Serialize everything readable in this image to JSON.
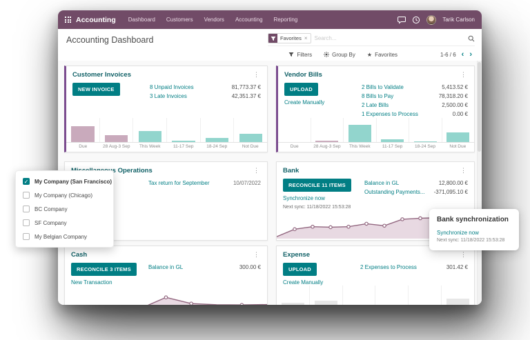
{
  "topbar": {
    "brand": "Accounting",
    "nav": [
      "Dashboard",
      "Customers",
      "Vendors",
      "Accounting",
      "Reporting"
    ],
    "user_name": "Tarik Carlson"
  },
  "control_panel": {
    "title": "Accounting Dashboard",
    "facet_label": "Favorites",
    "search_placeholder": "Search...",
    "filters_label": "Filters",
    "group_by_label": "Group By",
    "favorites_label": "Favorites",
    "pager": "1-6 / 6"
  },
  "icons": {
    "kebab": "⋮",
    "star": "★",
    "check": "✓",
    "close": "×",
    "chevron_left": "‹",
    "chevron_right": "›"
  },
  "cards": {
    "customer_invoices": {
      "title": "Customer Invoices",
      "button": "NEW INVOICE",
      "stats": [
        {
          "label": "8 Unpaid Invoices",
          "amount": "81,773.37 €"
        },
        {
          "label": "3 Late Invoices",
          "amount": "42,351.37 €"
        }
      ]
    },
    "vendor_bills": {
      "title": "Vendor Bills",
      "button": "UPLOAD",
      "link": "Create Manually",
      "stats": [
        {
          "label": "2 Bills to Validate",
          "amount": "5,413.52 €"
        },
        {
          "label": "8 Bills to Pay",
          "amount": "78,318.20 €"
        },
        {
          "label": "2 Late Bills",
          "amount": "2,500.00 €"
        },
        {
          "label": "1 Expenses to Process",
          "amount": "0.00 €"
        }
      ]
    },
    "misc_operations": {
      "title": "Miscellaneous Operations",
      "stats": [
        {
          "label": "Tax return for September",
          "amount": "10/07/2022"
        }
      ]
    },
    "bank": {
      "title": "Bank",
      "button": "RECONCILE 11 ITEMS",
      "link": "Synchronize now",
      "sub": "Next sync: 11/18/2022 15:53:28",
      "stats": [
        {
          "label": "Balance in GL",
          "amount": "12,800.00 €"
        },
        {
          "label": "Outstanding Payments...",
          "amount": "-371,095.10 €"
        }
      ]
    },
    "cash": {
      "title": "Cash",
      "button": "RECONCILE 3 ITEMS",
      "link": "New Transaction",
      "stats": [
        {
          "label": "Balance in GL",
          "amount": "300.00 €"
        }
      ]
    },
    "expense": {
      "title": "Expense",
      "button": "UPLOAD",
      "link": "Create Manually",
      "stats": [
        {
          "label": "2 Expenses to Process",
          "amount": "301.42 €"
        }
      ]
    }
  },
  "company_dropdown": {
    "items": [
      {
        "label": "My Company (San Francisco)",
        "checked": true
      },
      {
        "label": "My Company (Chicago)",
        "checked": false
      },
      {
        "label": "BC Company",
        "checked": false
      },
      {
        "label": "SF Company",
        "checked": false
      },
      {
        "label": "My Belgian Company",
        "checked": false
      }
    ]
  },
  "tooltip": {
    "title": "Bank synchronization",
    "link": "Synchronize now",
    "sub": "Next sync: 11/18/2022 15:53:28"
  },
  "colors": {
    "topbar": "#714B67",
    "teal": "#017E84",
    "cardtitle": "#0E5F65",
    "stripe": "#7B4C8F",
    "bar_mauve": "#C9AABC",
    "bar_teal": "#92D5CD",
    "bar_gray": "#E7E7E7",
    "line_stroke": "#92667F",
    "line_fill": "#E2CFDB"
  },
  "chart_data": [
    {
      "id": "customer_invoices",
      "type": "bar",
      "title": "Customer Invoices due amounts by period",
      "categories": [
        "Due",
        "28 Aug-3 Sep",
        "This Week",
        "11-17 Sep",
        "18-24 Sep",
        "Not Due"
      ],
      "values": [
        24,
        10,
        16,
        2,
        6,
        12
      ],
      "max": 36,
      "colors": [
        "#C9AABC",
        "#C9AABC",
        "#92D5CD",
        "#92D5CD",
        "#92D5CD",
        "#92D5CD"
      ]
    },
    {
      "id": "vendor_bills",
      "type": "bar",
      "title": "Vendor Bills due amounts by period",
      "categories": [
        "Due",
        "28 Aug-3 Sep",
        "This Week",
        "11-17 Sep",
        "18-24 Sep",
        "Not Due"
      ],
      "values": [
        0,
        2,
        26,
        4,
        1,
        14
      ],
      "max": 36,
      "colors": [
        "#C9AABC",
        "#C9AABC",
        "#92D5CD",
        "#92D5CD",
        "#92D5CD",
        "#92D5CD"
      ]
    },
    {
      "id": "bank",
      "type": "area",
      "title": "Bank balance trend",
      "values": [
        8,
        38,
        48,
        46,
        48,
        60,
        52,
        78,
        82,
        84,
        86,
        90
      ],
      "dots": [
        1,
        2,
        3,
        4,
        5,
        6,
        7,
        8,
        9,
        10
      ],
      "height": 44,
      "stroke": "#92667F",
      "fill": "#E2CFDB"
    },
    {
      "id": "cash",
      "type": "area",
      "title": "Cash balance trend",
      "values": [
        3,
        3,
        3,
        3,
        60,
        28,
        22,
        21,
        23
      ],
      "dots": [
        4,
        5,
        7
      ],
      "height": 36,
      "stroke": "#92667F",
      "fill": "#E2CFDB"
    },
    {
      "id": "expense",
      "type": "bar",
      "title": "Expense sample placeholder bars",
      "categories": [
        "",
        "",
        "",
        "",
        "",
        ""
      ],
      "values": [
        10,
        13,
        0,
        7,
        0,
        16
      ],
      "max": 36,
      "colors": [
        "#E7E7E7",
        "#E7E7E7",
        "#E7E7E7",
        "#E7E7E7",
        "#E7E7E7",
        "#E7E7E7"
      ]
    }
  ]
}
